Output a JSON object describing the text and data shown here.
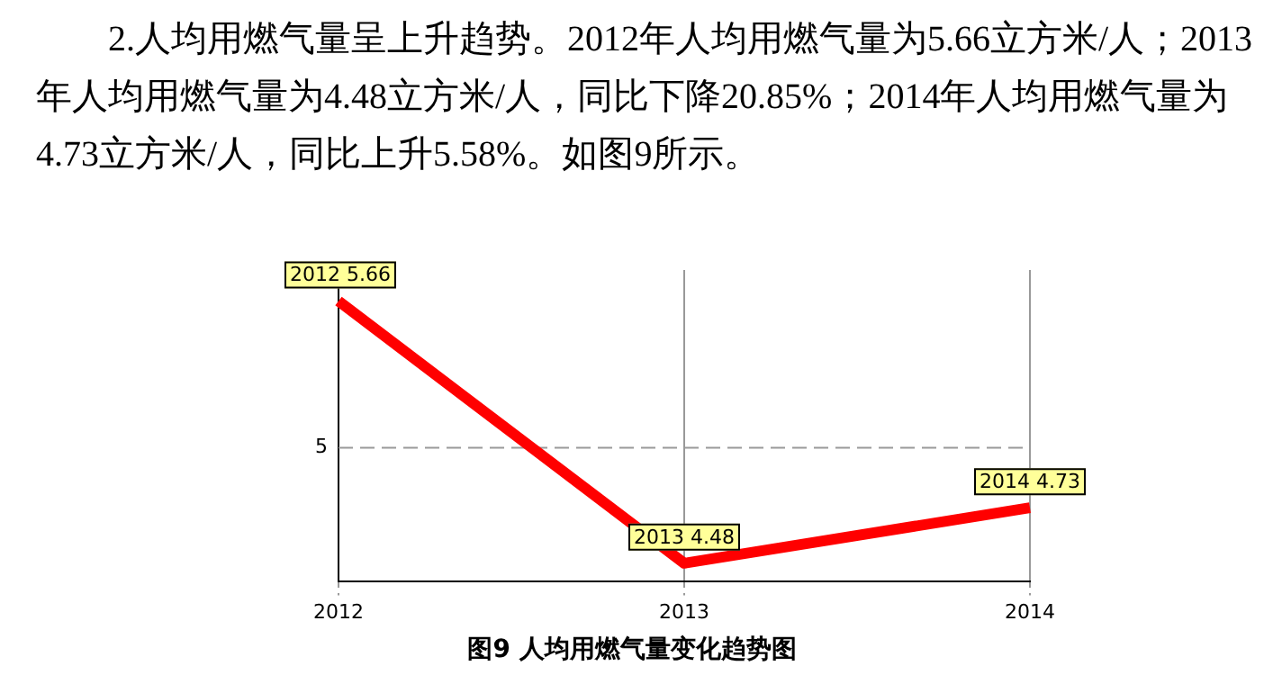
{
  "chart_data": {
    "type": "line",
    "title": "图9 人均用燃气量变化趋势图",
    "annotations": [
      "2.人均用燃气量呈上升趋势。2012年人均用燃气量为5.66立方米/人；2013年人均用燃气量为4.48立方米/人，同比下降20.85%；2014年人均用燃气量为4.73立方米/人，同比上升5.58%。如图9所示。"
    ],
    "categories": [
      "2012",
      "2013",
      "2014"
    ],
    "series": [
      {
        "color": "#ff0000",
        "values": [
          5.66,
          4.48,
          4.73
        ],
        "value_labels": [
          "2012 5.66",
          "2013 4.48",
          "2014 4.73"
        ]
      }
    ],
    "ref_lines": [
      {
        "axis": "y",
        "value": 5,
        "label": "5",
        "color": "#999999",
        "line_style": "dashed"
      }
    ],
    "grid": "x",
    "legend": false,
    "marker": "none",
    "line_style": "solid"
  }
}
